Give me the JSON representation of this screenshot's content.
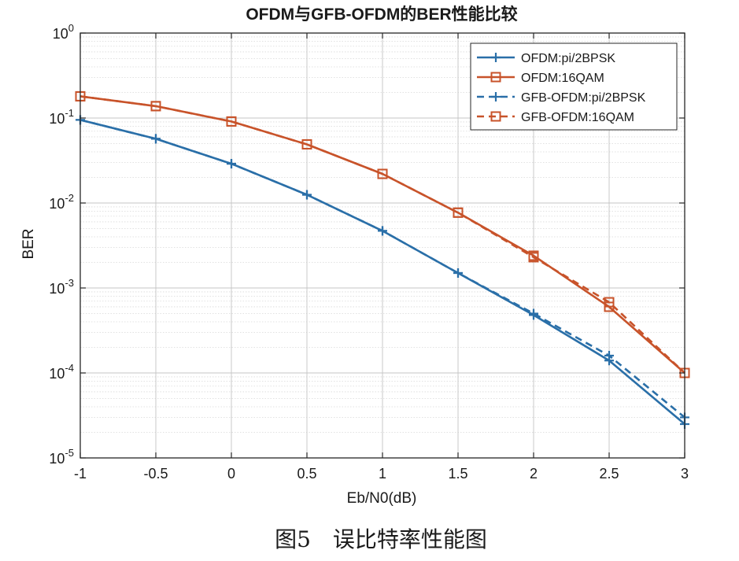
{
  "chart_data": {
    "type": "line",
    "title": "OFDM与GFB-OFDM的BER性能比较",
    "xlabel": "Eb/N0(dB)",
    "ylabel": "BER",
    "xlim": [
      -1,
      3
    ],
    "ylim": [
      1e-05,
      1
    ],
    "yscale": "log",
    "grid": true,
    "legend_position": "top-right",
    "x": [
      -1,
      -0.5,
      0,
      0.5,
      1,
      1.5,
      2,
      2.5,
      3
    ],
    "x_ticks": [
      "-1",
      "-0.5",
      "0",
      "0.5",
      "1",
      "1.5",
      "2",
      "2.5",
      "3"
    ],
    "y_ticks": [
      {
        "base": "10",
        "exp": "0",
        "value": 1
      },
      {
        "base": "10",
        "exp": "-1",
        "value": 0.1
      },
      {
        "base": "10",
        "exp": "-2",
        "value": 0.01
      },
      {
        "base": "10",
        "exp": "-3",
        "value": 0.001
      },
      {
        "base": "10",
        "exp": "-4",
        "value": 0.0001
      },
      {
        "base": "10",
        "exp": "-5",
        "value": 1e-05
      }
    ],
    "series": [
      {
        "name": "OFDM:pi/2BPSK",
        "color": "#2a6fa8",
        "dash": "solid",
        "marker": "plus",
        "values": [
          0.095,
          0.057,
          0.029,
          0.0125,
          0.0047,
          0.0015,
          0.00048,
          0.00014,
          2.5e-05
        ]
      },
      {
        "name": "OFDM:16QAM",
        "color": "#c8532a",
        "dash": "solid",
        "marker": "square",
        "values": [
          0.18,
          0.138,
          0.091,
          0.049,
          0.022,
          0.0077,
          0.0024,
          0.0006,
          0.0001
        ]
      },
      {
        "name": "GFB-OFDM:pi/2BPSK",
        "color": "#2a6fa8",
        "dash": "dashed",
        "marker": "plus",
        "values": [
          0.095,
          0.057,
          0.029,
          0.0125,
          0.0047,
          0.0015,
          0.0005,
          0.00016,
          3e-05
        ]
      },
      {
        "name": "GFB-OFDM:16QAM",
        "color": "#c8532a",
        "dash": "dashed",
        "marker": "square",
        "values": [
          0.18,
          0.138,
          0.091,
          0.049,
          0.022,
          0.0077,
          0.0023,
          0.00068,
          0.0001
        ]
      }
    ]
  },
  "caption": "图5　误比特率性能图"
}
